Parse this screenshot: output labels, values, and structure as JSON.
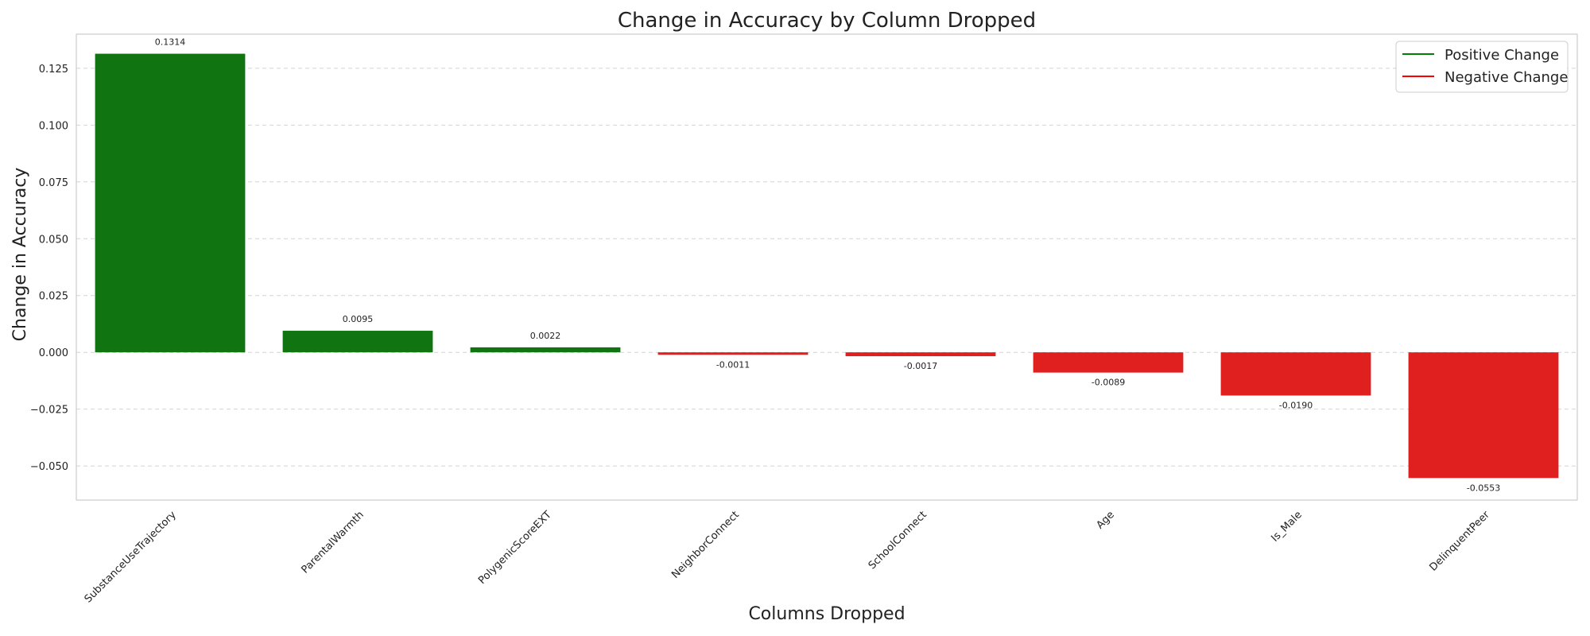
{
  "chart_data": {
    "type": "bar",
    "title": "Change in Accuracy by Column Dropped",
    "xlabel": "Columns Dropped",
    "ylabel": "Change in Accuracy",
    "categories": [
      "SubstanceUseTrajectory",
      "ParentalWarmth",
      "PolygenicScoreEXT",
      "NeighborConnect",
      "SchoolConnect",
      "Age",
      "Is_Male",
      "DelinquentPeer"
    ],
    "values": [
      0.1314,
      0.0095,
      0.0022,
      -0.0011,
      -0.0017,
      -0.0089,
      -0.019,
      -0.0553
    ],
    "value_labels": [
      "0.1314",
      "0.0095",
      "0.0022",
      "-0.0011",
      "-0.0017",
      "-0.0089",
      "-0.0190",
      "-0.0553"
    ],
    "ylim": [
      -0.065,
      0.14
    ],
    "yticks": [
      -0.05,
      -0.025,
      0.0,
      0.025,
      0.05,
      0.075,
      0.1,
      0.125
    ],
    "ytick_labels": [
      "−0.050",
      "−0.025",
      "0.000",
      "0.025",
      "0.050",
      "0.075",
      "0.100",
      "0.125"
    ],
    "grid": true,
    "legend": {
      "placement": "top-right",
      "entries": [
        {
          "label": "Positive Change",
          "color": "#008000"
        },
        {
          "label": "Negative Change",
          "color": "#ff0000"
        }
      ]
    },
    "colors": {
      "positive": "#107510",
      "negative": "#e01f1f"
    }
  }
}
